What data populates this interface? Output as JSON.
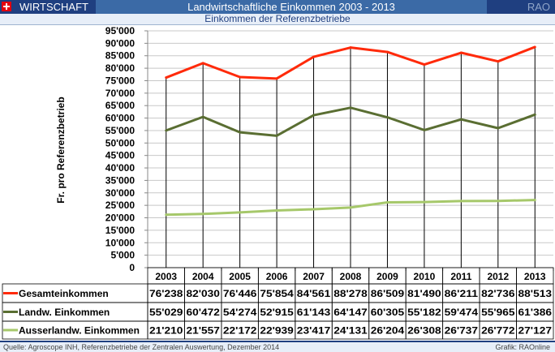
{
  "header": {
    "section": "WIRTSCHAFT",
    "title": "Landwirtschaftliche Einkommen 2003 - 2013",
    "brand": "RAO"
  },
  "subtitle": "Einkommen der Referenzbetriebe",
  "footer": {
    "source": "Quelle: Agroscope INH, Referenzbetriebe der Zentralen Auswertung, Dezember 2014",
    "credit": "Grafik: RAOnline"
  },
  "chart_data": {
    "type": "line",
    "title": "Einkommen der Referenzbetriebe",
    "ylabel": "Fr. pro Referenzbetrieb",
    "xlabel": "",
    "ylim": [
      0,
      95000
    ],
    "ytick_step": 5000,
    "yticks": [
      "0",
      "5'000",
      "10'000",
      "15'000",
      "20'000",
      "25'000",
      "30'000",
      "35'000",
      "40'000",
      "45'000",
      "50'000",
      "55'000",
      "60'000",
      "65'000",
      "70'000",
      "75'000",
      "80'000",
      "85'000",
      "90'000",
      "95'000"
    ],
    "grid": true,
    "legend": "data-table-below",
    "categories": [
      "2003",
      "2004",
      "2005",
      "2006",
      "2007",
      "2008",
      "2009",
      "2010",
      "2011",
      "2012",
      "2013"
    ],
    "series": [
      {
        "name": "Gesamteinkommen",
        "color": "#ff2a0a",
        "values": [
          76238,
          82030,
          76446,
          75854,
          84561,
          88278,
          86509,
          81490,
          86211,
          82736,
          88513
        ],
        "labels": [
          "76'238",
          "82'030",
          "76'446",
          "75'854",
          "84'561",
          "88'278",
          "86'509",
          "81'490",
          "86'211",
          "82'736",
          "88'513"
        ]
      },
      {
        "name": "Landw. Einkommen",
        "color": "#5a6e32",
        "values": [
          55029,
          60472,
          54274,
          52915,
          61143,
          64147,
          60305,
          55182,
          59474,
          55965,
          61386
        ],
        "labels": [
          "55'029",
          "60'472",
          "54'274",
          "52'915",
          "61'143",
          "64'147",
          "60'305",
          "55'182",
          "59'474",
          "55'965",
          "61'386"
        ]
      },
      {
        "name": "Ausserlandw. Einkommen",
        "color": "#a6c86a",
        "values": [
          21210,
          21557,
          22172,
          22939,
          23417,
          24131,
          26204,
          26308,
          26737,
          26772,
          27127
        ],
        "labels": [
          "21'210",
          "21'557",
          "22'172",
          "22'939",
          "23'417",
          "24'131",
          "26'204",
          "26'308",
          "26'737",
          "26'772",
          "27'127"
        ]
      }
    ]
  }
}
